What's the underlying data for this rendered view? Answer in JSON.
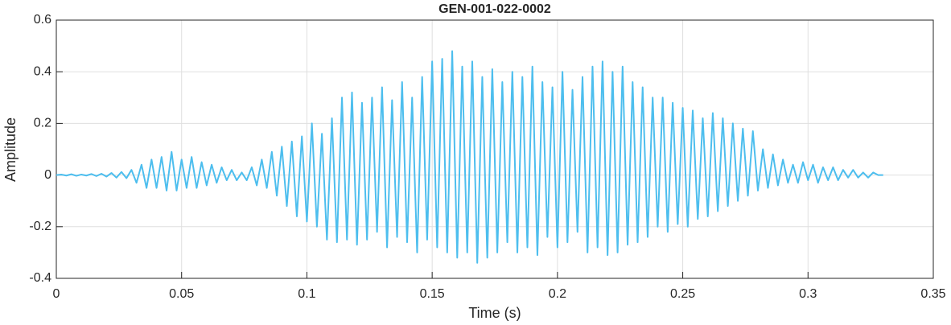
{
  "chart_data": {
    "type": "line",
    "title": "GEN-001-022-0002",
    "x_label": "Time (s)",
    "y_label": "Amplitude",
    "xlim": [
      0,
      0.35
    ],
    "ylim": [
      -0.4,
      0.6
    ],
    "xticks": [
      0,
      0.05,
      0.1,
      0.15,
      0.2,
      0.25,
      0.3,
      0.35
    ],
    "yticks": [
      -0.4,
      -0.2,
      0,
      0.2,
      0.4,
      0.6
    ],
    "grid": true,
    "x": [
      0,
      0.002,
      0.004,
      0.006,
      0.008,
      0.01,
      0.012,
      0.014,
      0.016,
      0.018,
      0.02,
      0.022,
      0.024,
      0.026,
      0.028,
      0.03,
      0.032,
      0.034,
      0.036,
      0.038,
      0.04,
      0.042,
      0.044,
      0.046,
      0.048,
      0.05,
      0.052,
      0.054,
      0.056,
      0.058,
      0.06,
      0.062,
      0.064,
      0.066,
      0.068,
      0.07,
      0.072,
      0.074,
      0.076,
      0.078,
      0.08,
      0.082,
      0.084,
      0.086,
      0.088,
      0.09,
      0.092,
      0.094,
      0.096,
      0.098,
      0.1,
      0.102,
      0.104,
      0.106,
      0.108,
      0.11,
      0.112,
      0.114,
      0.116,
      0.118,
      0.12,
      0.122,
      0.124,
      0.126,
      0.128,
      0.13,
      0.132,
      0.134,
      0.136,
      0.138,
      0.14,
      0.142,
      0.144,
      0.146,
      0.148,
      0.15,
      0.152,
      0.154,
      0.156,
      0.158,
      0.16,
      0.162,
      0.164,
      0.166,
      0.168,
      0.17,
      0.172,
      0.174,
      0.176,
      0.178,
      0.18,
      0.182,
      0.184,
      0.186,
      0.188,
      0.19,
      0.192,
      0.194,
      0.196,
      0.198,
      0.2,
      0.202,
      0.204,
      0.206,
      0.208,
      0.21,
      0.212,
      0.214,
      0.216,
      0.218,
      0.22,
      0.222,
      0.224,
      0.226,
      0.228,
      0.23,
      0.232,
      0.234,
      0.236,
      0.238,
      0.24,
      0.242,
      0.244,
      0.246,
      0.248,
      0.25,
      0.252,
      0.254,
      0.256,
      0.258,
      0.26,
      0.262,
      0.264,
      0.266,
      0.268,
      0.27,
      0.272,
      0.274,
      0.276,
      0.278,
      0.28,
      0.282,
      0.284,
      0.286,
      0.288,
      0.29,
      0.292,
      0.294,
      0.296,
      0.298,
      0.3,
      0.302,
      0.304,
      0.306,
      0.308,
      0.31,
      0.312,
      0.314,
      0.316,
      0.318,
      0.32,
      0.322,
      0.324,
      0.326,
      0.328,
      0.33
    ],
    "series": [
      {
        "color": "#4dbeee",
        "values": [
          0,
          0.002,
          -0.002,
          0.003,
          -0.003,
          0.002,
          -0.002,
          0.004,
          -0.004,
          0.005,
          -0.006,
          0.008,
          -0.01,
          0.012,
          -0.012,
          0.02,
          -0.03,
          0.04,
          -0.05,
          0.06,
          -0.05,
          0.07,
          -0.06,
          0.09,
          -0.06,
          0.06,
          -0.05,
          0.07,
          -0.05,
          0.05,
          -0.04,
          0.04,
          -0.03,
          0.03,
          -0.02,
          0.02,
          -0.02,
          0.01,
          -0.02,
          0.03,
          -0.04,
          0.06,
          -0.05,
          0.09,
          -0.08,
          0.11,
          -0.12,
          0.13,
          -0.16,
          0.15,
          -0.18,
          0.2,
          -0.2,
          0.16,
          -0.25,
          0.22,
          -0.26,
          0.3,
          -0.25,
          0.32,
          -0.27,
          0.28,
          -0.25,
          0.3,
          -0.22,
          0.34,
          -0.28,
          0.29,
          -0.24,
          0.36,
          -0.26,
          0.3,
          -0.3,
          0.38,
          -0.25,
          0.44,
          -0.28,
          0.45,
          -0.3,
          0.48,
          -0.32,
          0.42,
          -0.3,
          0.44,
          -0.34,
          0.38,
          -0.32,
          0.41,
          -0.3,
          0.36,
          -0.26,
          0.4,
          -0.3,
          0.38,
          -0.28,
          0.42,
          -0.31,
          0.36,
          -0.24,
          0.34,
          -0.28,
          0.4,
          -0.26,
          0.33,
          -0.22,
          0.38,
          -0.3,
          0.42,
          -0.28,
          0.44,
          -0.31,
          0.4,
          -0.3,
          0.42,
          -0.27,
          0.36,
          -0.26,
          0.34,
          -0.24,
          0.3,
          -0.2,
          0.3,
          -0.22,
          0.28,
          -0.19,
          0.26,
          -0.2,
          0.25,
          -0.17,
          0.22,
          -0.16,
          0.24,
          -0.14,
          0.22,
          -0.12,
          0.2,
          -0.1,
          0.18,
          -0.08,
          0.17,
          -0.06,
          0.1,
          -0.05,
          0.08,
          -0.04,
          0.06,
          -0.03,
          0.04,
          -0.03,
          0.05,
          -0.02,
          0.04,
          -0.03,
          0.03,
          -0.02,
          0.03,
          -0.02,
          0.02,
          -0.01,
          0.02,
          -0.01,
          0.01,
          -0.01,
          0.01,
          0,
          0
        ]
      }
    ]
  }
}
